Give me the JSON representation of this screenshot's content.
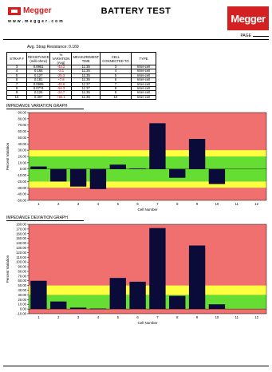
{
  "header": {
    "title": "BATTERY TEST",
    "logo_small": "Megger",
    "logo_big": "Megger",
    "url": "w w w . m e g g e r . c o m",
    "page_label": "PAGE"
  },
  "avg_strap": "Avg. Strap Resistance:  0.169",
  "table": {
    "headers": [
      "STRAP #",
      "RESISTANCE (milli-ohms)",
      "% VARIATION (Avg)",
      "MEASUREMENT TIME",
      "CELL CONNECTED TO",
      "TYPE"
    ],
    "rows": [
      [
        "3",
        "0.0951",
        "-43.2",
        "11:35",
        "3",
        "Inter-cell"
      ],
      [
        "4",
        "0.164",
        "-3.1",
        "11:35",
        "4",
        "Inter-cell"
      ],
      [
        "5",
        "0.127",
        "-25.3",
        "11:35",
        "5",
        "Inter-cell"
      ],
      [
        "6",
        "0.181",
        "+7.8",
        "11:35",
        "6",
        "Inter-cell"
      ],
      [
        "7",
        "0.0995",
        "-40.6",
        "11:37",
        "7",
        "Inter-cell"
      ],
      [
        "8",
        "0.0774",
        "-54.3",
        "11:37",
        "8",
        "Inter-cell"
      ],
      [
        "9",
        "0.126",
        "-24.7",
        "11:35",
        "9",
        "Inter-cell"
      ],
      [
        "10",
        "0.307",
        "+82.1",
        "11:36",
        "10",
        "Inter-cell"
      ]
    ],
    "red_col": 2
  },
  "chart1_title": "IMPEDANCE VARIATION GRAPH",
  "chart2_title": "IMPEDANCE DEVIATION GRAPH",
  "colors": {
    "red_band": "#f07070",
    "yellow_band": "#ffff40",
    "green_band": "#66dd33",
    "bar": "#0b0b3a"
  },
  "chart_data": [
    {
      "type": "bar",
      "title": "IMPEDANCE VARIATION GRAPH",
      "xlabel": "Cell Number",
      "ylabel": "Percent Variation",
      "categories": [
        "1",
        "2",
        "3",
        "4",
        "5",
        "6",
        "7",
        "8",
        "9",
        "10",
        "11",
        "12"
      ],
      "values": [
        4,
        -20,
        -28,
        -32,
        7,
        1,
        73,
        -14,
        48,
        -24,
        null,
        null
      ],
      "ylim": [
        -50,
        90
      ],
      "yticks": [
        "90.00",
        "80.00",
        "70.00",
        "60.00",
        "50.00",
        "40.00",
        "30.00",
        "20.00",
        "10.00",
        "0.00",
        "-10.00",
        "-20.00",
        "-30.00",
        "-40.00",
        "-50.00"
      ],
      "bands": [
        {
          "from": 30,
          "to": 90,
          "color": "red"
        },
        {
          "from": 20,
          "to": 30,
          "color": "yellow"
        },
        {
          "from": -20,
          "to": 20,
          "color": "green"
        },
        {
          "from": -30,
          "to": -20,
          "color": "yellow"
        },
        {
          "from": -50,
          "to": -30,
          "color": "red"
        }
      ]
    },
    {
      "type": "bar",
      "title": "IMPEDANCE DEVIATION GRAPH",
      "xlabel": "Cell Number",
      "ylabel": "Percent Variation",
      "categories": [
        "1",
        "2",
        "3",
        "4",
        "5",
        "6",
        "7",
        "8",
        "9",
        "10",
        "11",
        "12"
      ],
      "values": [
        60,
        16,
        3,
        1,
        66,
        58,
        172,
        28,
        135,
        10,
        null,
        null
      ],
      "ylim": [
        -10,
        180
      ],
      "yticks": [
        "180.00",
        "170.00",
        "160.00",
        "150.00",
        "140.00",
        "130.00",
        "120.00",
        "110.00",
        "100.00",
        "90.00",
        "80.00",
        "70.00",
        "60.00",
        "50.00",
        "40.00",
        "30.00",
        "20.00",
        "10.00",
        "0.00",
        "-10.00"
      ],
      "bands": [
        {
          "from": 50,
          "to": 180,
          "color": "red"
        },
        {
          "from": 30,
          "to": 50,
          "color": "yellow"
        },
        {
          "from": 0,
          "to": 30,
          "color": "green"
        },
        {
          "from": -10,
          "to": 0,
          "color": "red"
        }
      ]
    }
  ]
}
